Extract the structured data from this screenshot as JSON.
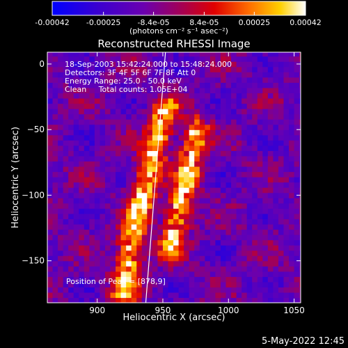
{
  "chart_data": {
    "type": "heatmap",
    "title": "Reconstructed RHESSI Image",
    "xlabel": "Heliocentric X (arcsec)",
    "ylabel": "Heliocentric Y (arcsec)",
    "xlim": [
      862,
      1055
    ],
    "ylim": [
      -182,
      9
    ],
    "xticks": [
      900,
      950,
      1000,
      1050
    ],
    "yticks": [
      0,
      -50,
      -100,
      -150
    ],
    "annotations": [
      "18-Sep-2003 15:42:24.000 to 15:48:24.000",
      "Detectors: 3F 4F 5F 6F 7F 8F Att 0",
      "Energy Range: 25.0 - 50.0 keV",
      "Clean     Total counts: 1.05E+04"
    ],
    "peak_label": "Position of Peak = [878,9]",
    "limb_line": [
      {
        "x": 952,
        "y": 9
      },
      {
        "x": 937,
        "y": -182
      }
    ],
    "colorbar": {
      "ticks": [
        "-0.00042",
        "-0.00025",
        "-8.4e-05",
        "8.4e-05",
        "0.00025",
        "0.00042"
      ],
      "tick_values": [
        -0.00042,
        -0.00025,
        -8.4e-05,
        8.4e-05,
        0.00025,
        0.00042
      ],
      "range": [
        -0.00042,
        0.00042
      ],
      "units": "(photons cm⁻² s⁻¹ asec⁻²)"
    },
    "emission_ridges": [
      {
        "name": "",
        "points": [
          [
            952,
            -35
          ],
          [
            945,
            -60
          ],
          [
            935,
            -100
          ],
          [
            925,
            -140
          ],
          [
            920,
            -175
          ]
        ]
      },
      {
        "name": "",
        "points": [
          [
            975,
            -50
          ],
          [
            970,
            -80
          ],
          [
            963,
            -110
          ],
          [
            955,
            -140
          ]
        ]
      }
    ]
  },
  "footer": {
    "date": "5-May-2022 12:45"
  }
}
